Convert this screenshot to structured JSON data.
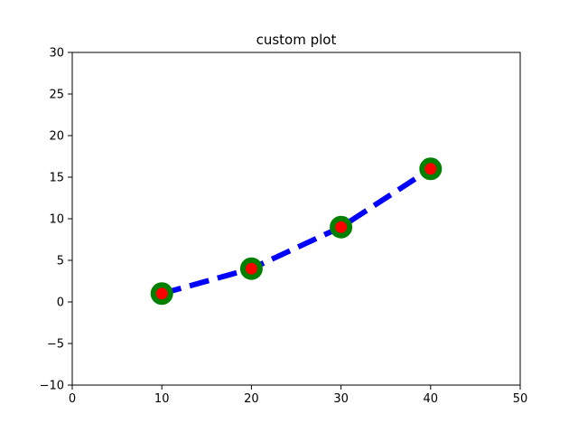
{
  "chart_data": {
    "type": "line",
    "title": "custom plot",
    "xlabel": "",
    "ylabel": "",
    "xlim": [
      0,
      50
    ],
    "ylim": [
      -10,
      30
    ],
    "xticks": [
      0,
      10,
      20,
      30,
      40,
      50
    ],
    "yticks": [
      -10,
      -5,
      0,
      5,
      10,
      15,
      20,
      25,
      30
    ],
    "grid": false,
    "legend": "none",
    "series": [
      {
        "x": [
          10,
          20,
          30,
          40
        ],
        "y": [
          1,
          4,
          9,
          16
        ],
        "line_color": "#0000ff",
        "line_style": "dashed",
        "marker": "circle",
        "marker_face_color": "#ff0000",
        "marker_edge_color": "#008000"
      }
    ]
  }
}
